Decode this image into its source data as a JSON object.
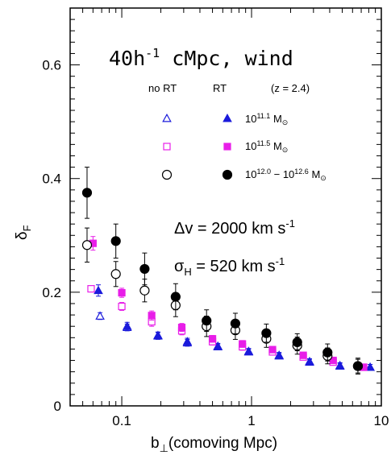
{
  "chart_data": {
    "type": "scatter",
    "title": "40h",
    "title_sup": "-1",
    "title_rest": " cMpc, wind",
    "xlabel_main": "b",
    "xlabel_sub": "⊥",
    "xlabel_rest": "(comoving Mpc)",
    "ylabel_main": "δ",
    "ylabel_sub": "F",
    "x_scale": "log",
    "xlim": [
      0.04,
      10
    ],
    "ylim": [
      0,
      0.7
    ],
    "x_ticks": [
      {
        "value": 0.1,
        "label": "0.1"
      },
      {
        "value": 1,
        "label": "1"
      },
      {
        "value": 10,
        "label": "10"
      }
    ],
    "y_ticks": [
      {
        "value": 0,
        "label": "0"
      },
      {
        "value": 0.2,
        "label": "0.2"
      },
      {
        "value": 0.4,
        "label": "0.4"
      },
      {
        "value": 0.6,
        "label": "0.6"
      }
    ],
    "grid": false,
    "legend": {
      "header_nort": "no RT",
      "header_rt": "RT",
      "header_z": "(z = 2.4)",
      "entries": [
        {
          "base": "10",
          "exp": "11.1",
          "mid": "",
          "base2": "",
          "exp2": "",
          "unit": " M",
          "unit_sub": "⊙",
          "marker": "triangle",
          "color": "#1a1adb"
        },
        {
          "base": "10",
          "exp": "11.5",
          "mid": "",
          "base2": "",
          "exp2": "",
          "unit": " M",
          "unit_sub": "⊙",
          "marker": "square",
          "color": "#e81ee8"
        },
        {
          "base": "10",
          "exp": "12.0",
          "mid": " − ",
          "base2": "10",
          "exp2": "12.6",
          "unit": " M",
          "unit_sub": "⊙",
          "marker": "circle",
          "color": "#000000"
        }
      ]
    },
    "annotations": {
      "dv_prefix": "Δv = 2000 km s",
      "dv_sup": "-1",
      "sigma_prefix": "σ",
      "sigma_sub": "H",
      "sigma_rest": " = 520 km s",
      "sigma_sup": "-1"
    },
    "series": [
      {
        "marker": "triangle",
        "color": "#1a1adb",
        "fill": "none",
        "points": [
          {
            "x": 0.068,
            "y": 0.158,
            "err": 0.006
          },
          {
            "x": 0.11,
            "y": 0.138,
            "err": 0.006
          },
          {
            "x": 0.19,
            "y": 0.123,
            "err": 0.006
          },
          {
            "x": 0.32,
            "y": 0.111,
            "err": 0.006
          },
          {
            "x": 0.55,
            "y": 0.104,
            "err": 0.005
          },
          {
            "x": 0.95,
            "y": 0.095,
            "err": 0.005
          },
          {
            "x": 1.63,
            "y": 0.088,
            "err": 0.005
          },
          {
            "x": 2.8,
            "y": 0.077,
            "err": 0.005
          },
          {
            "x": 4.8,
            "y": 0.07,
            "err": 0.005
          },
          {
            "x": 8.2,
            "y": 0.068,
            "err": 0.005
          }
        ]
      },
      {
        "marker": "triangle",
        "color": "#1a1adb",
        "fill": "filled",
        "points": [
          {
            "x": 0.066,
            "y": 0.203,
            "err": 0.01
          },
          {
            "x": 0.11,
            "y": 0.14,
            "err": 0.007
          },
          {
            "x": 0.19,
            "y": 0.124,
            "err": 0.006
          },
          {
            "x": 0.32,
            "y": 0.113,
            "err": 0.006
          },
          {
            "x": 0.55,
            "y": 0.105,
            "err": 0.005
          },
          {
            "x": 0.95,
            "y": 0.096,
            "err": 0.005
          },
          {
            "x": 1.63,
            "y": 0.089,
            "err": 0.005
          },
          {
            "x": 2.8,
            "y": 0.078,
            "err": 0.005
          },
          {
            "x": 4.8,
            "y": 0.071,
            "err": 0.005
          },
          {
            "x": 8.2,
            "y": 0.068,
            "err": 0.005
          }
        ]
      },
      {
        "marker": "square",
        "color": "#e81ee8",
        "fill": "none",
        "points": [
          {
            "x": 0.058,
            "y": 0.206,
            "err": 0.005
          },
          {
            "x": 0.1,
            "y": 0.175,
            "err": 0.007
          },
          {
            "x": 0.17,
            "y": 0.148,
            "err": 0.008
          },
          {
            "x": 0.29,
            "y": 0.132,
            "err": 0.007
          },
          {
            "x": 0.5,
            "y": 0.113,
            "err": 0.006
          },
          {
            "x": 0.85,
            "y": 0.104,
            "err": 0.006
          },
          {
            "x": 1.45,
            "y": 0.095,
            "err": 0.005
          },
          {
            "x": 2.5,
            "y": 0.086,
            "err": 0.005
          },
          {
            "x": 4.25,
            "y": 0.077,
            "err": 0.005
          },
          {
            "x": 7.3,
            "y": 0.068,
            "err": 0.005
          }
        ]
      },
      {
        "marker": "square",
        "color": "#e81ee8",
        "fill": "filled",
        "points": [
          {
            "x": 0.06,
            "y": 0.286,
            "err": 0.012
          },
          {
            "x": 0.1,
            "y": 0.199,
            "err": 0.008
          },
          {
            "x": 0.17,
            "y": 0.159,
            "err": 0.008
          },
          {
            "x": 0.29,
            "y": 0.138,
            "err": 0.007
          },
          {
            "x": 0.5,
            "y": 0.118,
            "err": 0.006
          },
          {
            "x": 0.85,
            "y": 0.109,
            "err": 0.006
          },
          {
            "x": 1.45,
            "y": 0.099,
            "err": 0.005
          },
          {
            "x": 2.5,
            "y": 0.089,
            "err": 0.005
          },
          {
            "x": 4.25,
            "y": 0.08,
            "err": 0.005
          },
          {
            "x": 7.3,
            "y": 0.068,
            "err": 0.005
          }
        ]
      },
      {
        "marker": "circle",
        "color": "#000000",
        "fill": "none",
        "points": [
          {
            "x": 0.054,
            "y": 0.283,
            "err": 0.03
          },
          {
            "x": 0.09,
            "y": 0.232,
            "err": 0.022
          },
          {
            "x": 0.15,
            "y": 0.203,
            "err": 0.02
          },
          {
            "x": 0.26,
            "y": 0.177,
            "err": 0.02
          },
          {
            "x": 0.45,
            "y": 0.14,
            "err": 0.018
          },
          {
            "x": 0.75,
            "y": 0.133,
            "err": 0.016
          },
          {
            "x": 1.3,
            "y": 0.118,
            "err": 0.015
          },
          {
            "x": 2.25,
            "y": 0.106,
            "err": 0.015
          },
          {
            "x": 3.85,
            "y": 0.088,
            "err": 0.014
          },
          {
            "x": 6.6,
            "y": 0.07,
            "err": 0.012
          }
        ]
      },
      {
        "marker": "circle",
        "color": "#000000",
        "fill": "filled",
        "points": [
          {
            "x": 0.054,
            "y": 0.375,
            "err": 0.045
          },
          {
            "x": 0.09,
            "y": 0.29,
            "err": 0.03
          },
          {
            "x": 0.15,
            "y": 0.241,
            "err": 0.028
          },
          {
            "x": 0.26,
            "y": 0.192,
            "err": 0.023
          },
          {
            "x": 0.45,
            "y": 0.15,
            "err": 0.019
          },
          {
            "x": 0.75,
            "y": 0.145,
            "err": 0.018
          },
          {
            "x": 1.3,
            "y": 0.128,
            "err": 0.016
          },
          {
            "x": 2.25,
            "y": 0.112,
            "err": 0.015
          },
          {
            "x": 3.85,
            "y": 0.094,
            "err": 0.015
          },
          {
            "x": 6.6,
            "y": 0.07,
            "err": 0.014
          }
        ]
      }
    ]
  }
}
